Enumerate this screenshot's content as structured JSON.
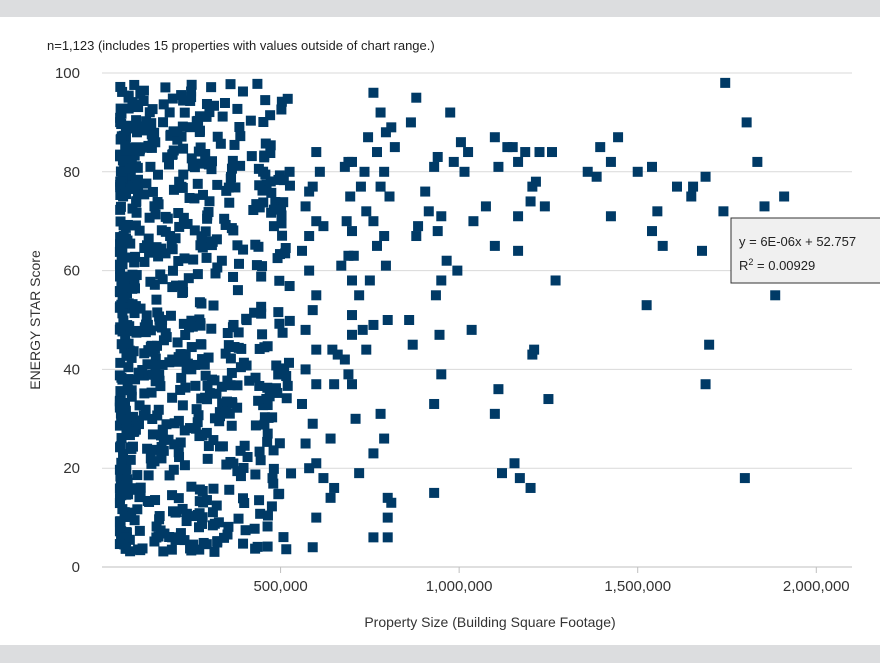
{
  "chart_data": {
    "type": "scatter",
    "note": "n=1,123 (includes 15 properties with values outside of chart range.)",
    "xlabel": "Property Size (Building Square Footage)",
    "ylabel": "ENERGY STAR Score",
    "xlim": [
      0,
      2100000
    ],
    "ylim": [
      0,
      100
    ],
    "xticks": [
      500000,
      1000000,
      1500000,
      2000000
    ],
    "xtick_labels": [
      "500,000",
      "1,000,000",
      "1,500,000",
      "2,000,000"
    ],
    "yticks": [
      0,
      20,
      40,
      60,
      80,
      100
    ],
    "ytick_labels": [
      "0",
      "20",
      "40",
      "60",
      "80",
      "100"
    ],
    "grid": "horizontal",
    "marker": "square",
    "trendline": {
      "equation": "y = 6E-06x + 52.757",
      "r2_prefix": "R",
      "r2_exp": "2",
      "r2_value": " = 0.00929"
    },
    "series": [
      {
        "color": "#003a66",
        "points": [
          [
            1745000,
            98
          ],
          [
            1805000,
            90
          ],
          [
            1835000,
            82
          ],
          [
            1910000,
            75
          ],
          [
            1855000,
            73
          ],
          [
            1740000,
            72
          ],
          [
            1885000,
            55
          ],
          [
            1700000,
            45
          ],
          [
            1690000,
            37
          ],
          [
            1800000,
            18
          ],
          [
            1445000,
            87
          ],
          [
            1395000,
            85
          ],
          [
            1385000,
            79
          ],
          [
            1425000,
            82
          ],
          [
            1500000,
            80
          ],
          [
            1540000,
            81
          ],
          [
            1360000,
            80
          ],
          [
            1425000,
            71
          ],
          [
            1540000,
            68
          ],
          [
            1555000,
            72
          ],
          [
            1570000,
            65
          ],
          [
            1610000,
            77
          ],
          [
            1655000,
            77
          ],
          [
            1650000,
            75
          ],
          [
            1690000,
            79
          ],
          [
            1680000,
            64
          ],
          [
            1525000,
            53
          ],
          [
            1185000,
            84
          ],
          [
            1150000,
            85
          ],
          [
            1165000,
            82
          ],
          [
            1100000,
            87
          ],
          [
            1110000,
            81
          ],
          [
            1135000,
            85
          ],
          [
            1215000,
            78
          ],
          [
            1225000,
            84
          ],
          [
            1260000,
            84
          ],
          [
            1205000,
            77
          ],
          [
            1200000,
            74
          ],
          [
            1240000,
            73
          ],
          [
            1165000,
            71
          ],
          [
            1165000,
            64
          ],
          [
            1270000,
            58
          ],
          [
            1100000,
            65
          ],
          [
            1075000,
            73
          ],
          [
            1040000,
            70
          ],
          [
            1005000,
            86
          ],
          [
            1015000,
            80
          ],
          [
            1025000,
            84
          ],
          [
            975000,
            92
          ],
          [
            985000,
            82
          ],
          [
            995000,
            60
          ],
          [
            1035000,
            48
          ],
          [
            1210000,
            44
          ],
          [
            1205000,
            43
          ],
          [
            1250000,
            34
          ],
          [
            1110000,
            36
          ],
          [
            1100000,
            31
          ],
          [
            1155000,
            21
          ],
          [
            1170000,
            18
          ],
          [
            1120000,
            19
          ],
          [
            1200000,
            16
          ],
          [
            930000,
            33
          ],
          [
            930000,
            15
          ],
          [
            930000,
            81
          ],
          [
            940000,
            83
          ],
          [
            950000,
            71
          ],
          [
            940000,
            68
          ],
          [
            915000,
            72
          ],
          [
            905000,
            76
          ],
          [
            880000,
            95
          ],
          [
            865000,
            90
          ],
          [
            885000,
            69
          ],
          [
            880000,
            67
          ],
          [
            860000,
            50
          ],
          [
            870000,
            45
          ],
          [
            965000,
            62
          ],
          [
            950000,
            58
          ],
          [
            935000,
            55
          ],
          [
            945000,
            47
          ],
          [
            950000,
            39
          ],
          [
            760000,
            96
          ],
          [
            780000,
            92
          ],
          [
            795000,
            88
          ],
          [
            770000,
            84
          ],
          [
            790000,
            80
          ],
          [
            780000,
            77
          ],
          [
            810000,
            89
          ],
          [
            820000,
            85
          ],
          [
            805000,
            75
          ],
          [
            790000,
            67
          ],
          [
            795000,
            61
          ],
          [
            800000,
            50
          ],
          [
            745000,
            87
          ],
          [
            735000,
            80
          ],
          [
            725000,
            77
          ],
          [
            740000,
            72
          ],
          [
            760000,
            70
          ],
          [
            770000,
            65
          ],
          [
            750000,
            58
          ],
          [
            760000,
            49
          ],
          [
            730000,
            48
          ],
          [
            740000,
            44
          ],
          [
            780000,
            31
          ],
          [
            790000,
            26
          ],
          [
            760000,
            23
          ],
          [
            800000,
            14
          ],
          [
            810000,
            13
          ],
          [
            800000,
            10
          ],
          [
            800000,
            6
          ],
          [
            760000,
            6
          ],
          [
            700000,
            82
          ],
          [
            690000,
            82
          ],
          [
            680000,
            81
          ],
          [
            695000,
            75
          ],
          [
            685000,
            70
          ],
          [
            700000,
            68
          ],
          [
            705000,
            63
          ],
          [
            690000,
            63
          ],
          [
            670000,
            61
          ],
          [
            700000,
            58
          ],
          [
            720000,
            55
          ],
          [
            700000,
            51
          ],
          [
            700000,
            47
          ],
          [
            680000,
            42
          ],
          [
            690000,
            39
          ],
          [
            700000,
            37
          ],
          [
            710000,
            30
          ],
          [
            720000,
            19
          ],
          [
            660000,
            43
          ],
          [
            645000,
            44
          ],
          [
            650000,
            37
          ],
          [
            640000,
            26
          ],
          [
            640000,
            14
          ],
          [
            650000,
            16
          ],
          [
            600000,
            84
          ],
          [
            610000,
            80
          ],
          [
            590000,
            77
          ],
          [
            580000,
            76
          ],
          [
            570000,
            73
          ],
          [
            600000,
            70
          ],
          [
            620000,
            69
          ],
          [
            580000,
            67
          ],
          [
            560000,
            64
          ],
          [
            580000,
            60
          ],
          [
            600000,
            55
          ],
          [
            590000,
            52
          ],
          [
            570000,
            48
          ],
          [
            600000,
            44
          ],
          [
            570000,
            40
          ],
          [
            600000,
            37
          ],
          [
            560000,
            33
          ],
          [
            590000,
            29
          ],
          [
            570000,
            25
          ],
          [
            600000,
            21
          ],
          [
            580000,
            20
          ],
          [
            600000,
            10
          ],
          [
            590000,
            4
          ],
          [
            620000,
            18
          ]
        ]
      }
    ]
  }
}
